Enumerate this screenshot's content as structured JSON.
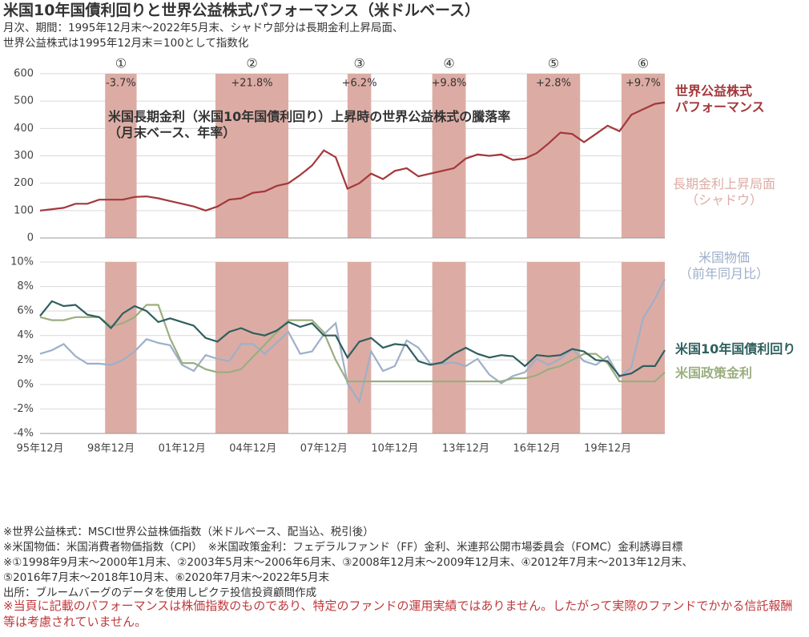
{
  "title": "米国10年国債利回りと世界公益株式パフォーマンス（米ドルベース）",
  "subtitle": [
    "月次、期間：1995年12月末～2022年5月末、シャドウ部分は長期金利上昇局面、",
    "世界公益株式は1995年12月末＝100として指数化"
  ],
  "chart_data": [
    {
      "type": "line",
      "annotation": "米国長期金利（米国10年国債利回り）上昇時の世界公益株式の騰落率\n（月末ベース、年率）",
      "shade_label": "長期金利上昇局面\n（シャドウ）",
      "shades": {
        "starts": [
          "1998-09",
          "2003-05",
          "2008-12",
          "2012-07",
          "2016-07",
          "2020-07"
        ],
        "ends": [
          "2000-01",
          "2006-06",
          "2009-12",
          "2013-12",
          "2018-10",
          "2022-05"
        ],
        "labels": [
          "①",
          "②",
          "③",
          "④",
          "⑤",
          "⑥"
        ],
        "values": [
          -3.7,
          21.8,
          6.2,
          9.8,
          2.8,
          9.7
        ],
        "value_labels": [
          "-3.7%",
          "+21.8%",
          "+6.2%",
          "+9.8%",
          "+2.8%",
          "+9.7%"
        ],
        "color": "#dcaca4"
      },
      "x": [
        "1995-12",
        "1996-06",
        "1996-12",
        "1997-06",
        "1997-12",
        "1998-06",
        "1998-12",
        "1999-06",
        "1999-12",
        "2000-06",
        "2000-12",
        "2001-06",
        "2001-12",
        "2002-06",
        "2002-12",
        "2003-06",
        "2003-12",
        "2004-06",
        "2004-12",
        "2005-06",
        "2005-12",
        "2006-06",
        "2006-12",
        "2007-06",
        "2007-12",
        "2008-06",
        "2008-12",
        "2009-06",
        "2009-12",
        "2010-06",
        "2010-12",
        "2011-06",
        "2011-12",
        "2012-06",
        "2012-12",
        "2013-06",
        "2013-12",
        "2014-06",
        "2014-12",
        "2015-06",
        "2015-12",
        "2016-06",
        "2016-12",
        "2017-06",
        "2017-12",
        "2018-06",
        "2018-12",
        "2019-06",
        "2019-12",
        "2020-06",
        "2020-12",
        "2021-06",
        "2021-12",
        "2022-05"
      ],
      "ylim": [
        0,
        600
      ],
      "yticks": [
        0,
        100,
        200,
        300,
        400,
        500,
        600
      ],
      "grid": true,
      "series": [
        {
          "name": "世界公益株式\nパフォーマンス",
          "color": "#a3383c",
          "values": [
            100,
            105,
            110,
            125,
            125,
            140,
            140,
            140,
            150,
            152,
            145,
            135,
            125,
            115,
            100,
            115,
            140,
            145,
            165,
            170,
            190,
            200,
            230,
            265,
            320,
            295,
            180,
            200,
            235,
            215,
            245,
            255,
            225,
            235,
            245,
            255,
            290,
            305,
            300,
            305,
            285,
            290,
            310,
            345,
            385,
            380,
            350,
            380,
            410,
            390,
            450,
            470,
            490,
            495
          ]
        }
      ]
    },
    {
      "type": "line",
      "x": [
        "1995-12",
        "1996-06",
        "1996-12",
        "1997-06",
        "1997-12",
        "1998-06",
        "1998-12",
        "1999-06",
        "1999-12",
        "2000-06",
        "2000-12",
        "2001-06",
        "2001-12",
        "2002-06",
        "2002-12",
        "2003-06",
        "2003-12",
        "2004-06",
        "2004-12",
        "2005-06",
        "2005-12",
        "2006-06",
        "2006-12",
        "2007-06",
        "2007-12",
        "2008-06",
        "2008-12",
        "2009-06",
        "2009-12",
        "2010-06",
        "2010-12",
        "2011-06",
        "2011-12",
        "2012-06",
        "2012-12",
        "2013-06",
        "2013-12",
        "2014-06",
        "2014-12",
        "2015-06",
        "2015-12",
        "2016-06",
        "2016-12",
        "2017-06",
        "2017-12",
        "2018-06",
        "2018-12",
        "2019-06",
        "2019-12",
        "2020-06",
        "2020-12",
        "2021-06",
        "2021-12",
        "2022-05"
      ],
      "xticks": [
        {
          "value": "1995-12",
          "label": "95年12月"
        },
        {
          "value": "1998-12",
          "label": "98年12月"
        },
        {
          "value": "2001-12",
          "label": "01年12月"
        },
        {
          "value": "2004-12",
          "label": "04年12月"
        },
        {
          "value": "2007-12",
          "label": "07年12月"
        },
        {
          "value": "2010-12",
          "label": "10年12月"
        },
        {
          "value": "2013-12",
          "label": "13年12月"
        },
        {
          "value": "2016-12",
          "label": "16年12月"
        },
        {
          "value": "2019-12",
          "label": "19年12月"
        }
      ],
      "ylim": [
        -4,
        10
      ],
      "yticks": [
        {
          "value": -4,
          "label": "-4%"
        },
        {
          "value": -2,
          "label": "-2%"
        },
        {
          "value": 0,
          "label": "0%"
        },
        {
          "value": 2,
          "label": "2%"
        },
        {
          "value": 4,
          "label": "4%"
        },
        {
          "value": 6,
          "label": "6%"
        },
        {
          "value": 8,
          "label": "8%"
        },
        {
          "value": 10,
          "label": "10%"
        }
      ],
      "grid": true,
      "series": [
        {
          "name": "米国物価\n（前年同月比）",
          "color": "#9eafc9",
          "values": [
            2.5,
            2.8,
            3.3,
            2.3,
            1.7,
            1.7,
            1.6,
            2.0,
            2.7,
            3.7,
            3.4,
            3.2,
            1.6,
            1.1,
            2.4,
            2.1,
            1.9,
            3.3,
            3.3,
            2.5,
            3.4,
            4.3,
            2.5,
            2.7,
            4.1,
            5.0,
            0.1,
            -1.4,
            2.7,
            1.1,
            1.5,
            3.6,
            3.0,
            1.7,
            1.7,
            1.8,
            1.5,
            2.1,
            0.8,
            0.1,
            0.7,
            1.0,
            2.1,
            1.6,
            2.1,
            2.9,
            1.9,
            1.6,
            2.3,
            0.6,
            1.4,
            5.4,
            7.0,
            8.6
          ]
        },
        {
          "name": "米国政策金利",
          "color": "#9bae7f",
          "values": [
            5.5,
            5.25,
            5.25,
            5.5,
            5.5,
            5.5,
            4.75,
            5.0,
            5.5,
            6.5,
            6.5,
            3.75,
            1.75,
            1.75,
            1.25,
            1.0,
            1.0,
            1.25,
            2.25,
            3.25,
            4.25,
            5.25,
            5.25,
            5.25,
            4.25,
            2.0,
            0.25,
            0.25,
            0.25,
            0.25,
            0.25,
            0.25,
            0.25,
            0.25,
            0.25,
            0.25,
            0.25,
            0.25,
            0.25,
            0.25,
            0.5,
            0.5,
            0.75,
            1.25,
            1.5,
            2.0,
            2.5,
            2.5,
            1.75,
            0.25,
            0.25,
            0.25,
            0.25,
            1.0
          ]
        },
        {
          "name": "米国10年国債利回り",
          "color": "#2f5f5f",
          "values": [
            5.6,
            6.8,
            6.4,
            6.5,
            5.7,
            5.5,
            4.6,
            5.8,
            6.4,
            6.0,
            5.1,
            5.4,
            5.1,
            4.8,
            3.8,
            3.5,
            4.3,
            4.6,
            4.2,
            4.0,
            4.4,
            5.1,
            4.7,
            5.0,
            4.0,
            4.0,
            2.2,
            3.5,
            3.8,
            3.0,
            3.3,
            3.2,
            1.9,
            1.6,
            1.8,
            2.5,
            3.0,
            2.5,
            2.2,
            2.4,
            2.3,
            1.5,
            2.4,
            2.3,
            2.4,
            2.9,
            2.7,
            2.0,
            1.9,
            0.7,
            0.9,
            1.5,
            1.5,
            2.8
          ]
        }
      ]
    }
  ],
  "notes": [
    "※世界公益株式：MSCI世界公益株価指数（米ドルベース、配当込、税引後）",
    "※米国物価：米国消費者物価指数（CPI）　※米国政策金利：フェデラルファンド（FF）金利、米連邦公開市場委員会（FOMC）金利誘導目標",
    "※①1998年9月末～2000年1月末、②2003年5月末～2006年6月末、③2008年12月末～2009年12月末、④2012年7月末～2013年12月末、",
    "⑤2016年7月末～2018年10月末、⑥2020年7月末～2022年5月末",
    "出所：ブルームバーグのデータを使用しピクテ投信投資顧問作成"
  ],
  "disclaimer": "※当頁に記載のパフォーマンスは株価指数のものであり、特定のファンドの運用実績ではありません。したがって実際のファンドでかかる信託報酬等は考慮されていません。"
}
